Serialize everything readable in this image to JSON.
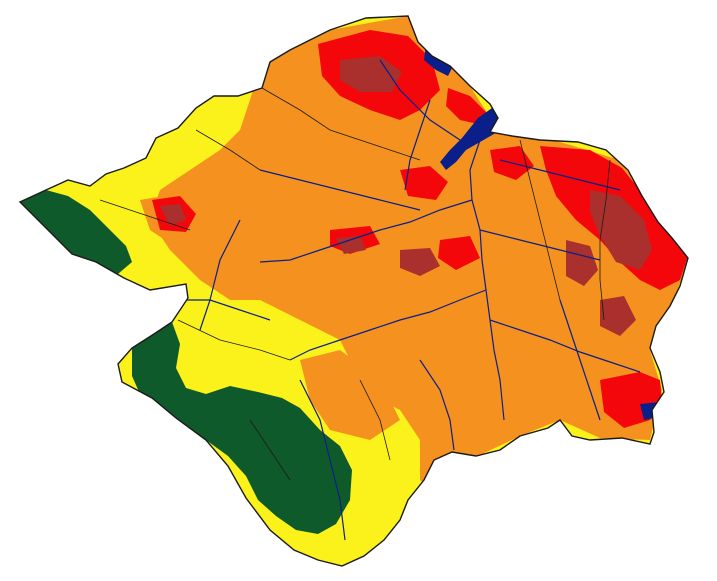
{
  "map": {
    "colors": {
      "background": "#ffffff",
      "forest": "#0f5a2a",
      "low": "#fbf21b",
      "medium": "#f5921f",
      "high": "#f4070a",
      "very_high": "#a9302c",
      "water": "#0b1f8a",
      "boundary": "#1a1a1a"
    },
    "zones": [
      "forest",
      "low",
      "medium",
      "high",
      "very_high"
    ],
    "features": [
      "municipal-boundaries",
      "rivers",
      "estuary"
    ]
  }
}
